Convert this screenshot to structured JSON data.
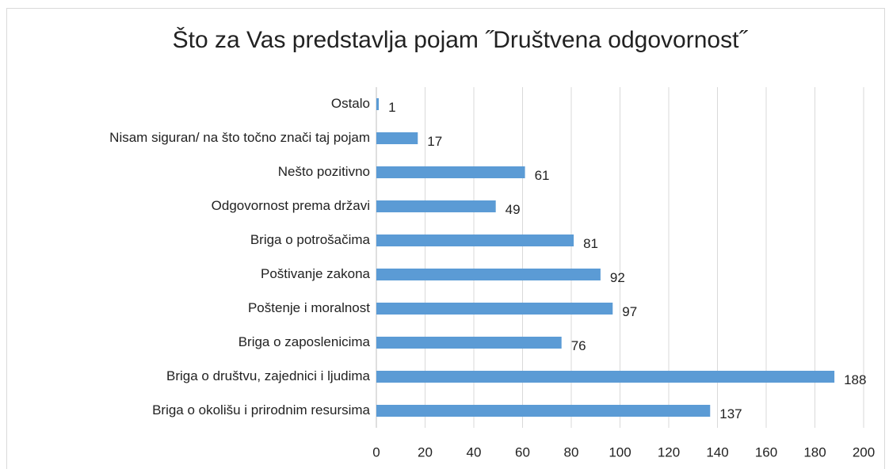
{
  "chart_data": {
    "type": "bar",
    "orientation": "horizontal",
    "title": "Što za Vas predstavlja pojam ˝Društvena odgovornost˝",
    "categories": [
      "Ostalo",
      "Nisam siguran/ na što točno znači taj pojam",
      "Nešto pozitivno",
      "Odgovornost prema državi",
      "Briga o potrošačima",
      "Poštivanje zakona",
      "Poštenje i moralnost",
      "Briga o zaposlenicima",
      "Briga o društvu, zajednici i ljudima",
      "Briga o okolišu i prirodnim resursima"
    ],
    "values": [
      1,
      17,
      61,
      49,
      81,
      92,
      97,
      76,
      188,
      137
    ],
    "color": "#5b9bd5",
    "xlim": [
      0,
      200
    ],
    "xticks": [
      0,
      20,
      40,
      60,
      80,
      100,
      120,
      140,
      160,
      180,
      200
    ],
    "grid": true
  }
}
